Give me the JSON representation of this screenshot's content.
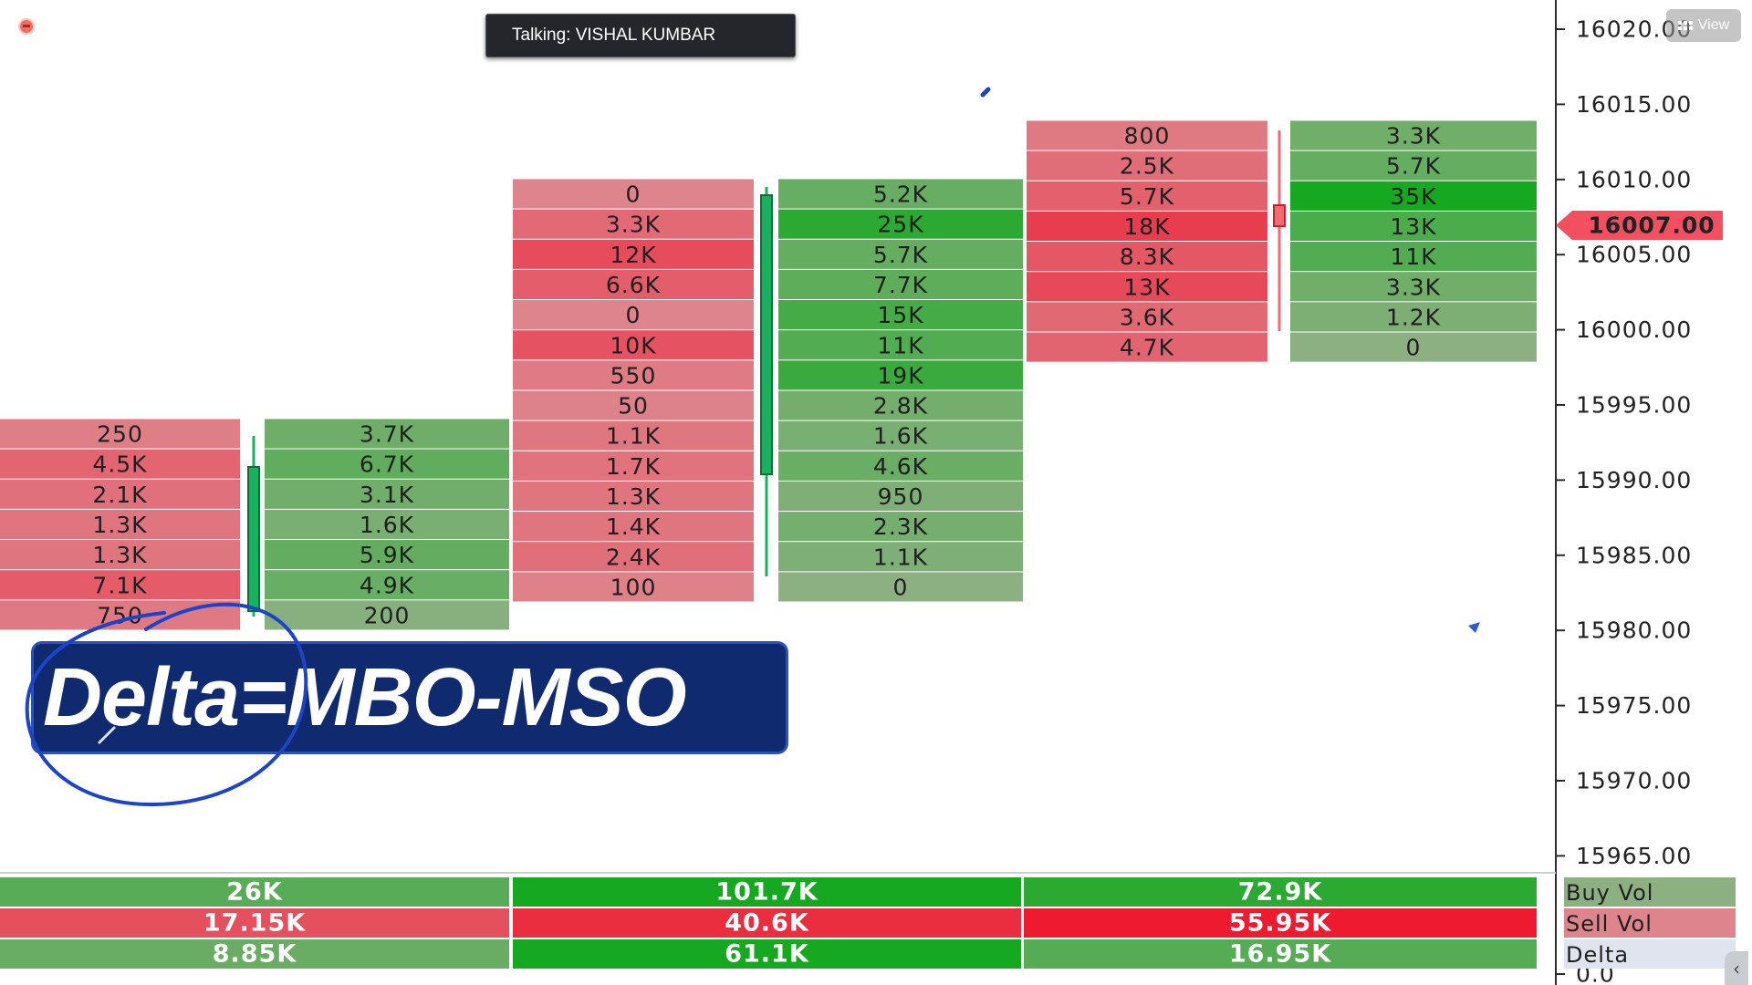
{
  "overlay": {
    "talking_label": "Talking: VISHAL KUMBAR",
    "view_button_label": "View",
    "delta_formula": "Delta=MBO-MSO"
  },
  "chart_data": {
    "type": "table",
    "price_axis": {
      "ticks": [
        "16020.00",
        "16015.00",
        "16010.00",
        "16005.00",
        "16000.00",
        "15995.00",
        "15990.00",
        "15985.00",
        "15980.00",
        "15975.00",
        "15970.00",
        "15965.00",
        "0.0"
      ],
      "current_price": "16007.00",
      "current_price_color": "#f25060"
    },
    "bars": [
      {
        "sell": [
          "250",
          "4.5K",
          "2.1K",
          "1.3K",
          "1.3K",
          "7.1K",
          "750"
        ],
        "buy": [
          "3.7K",
          "6.7K",
          "3.1K",
          "1.6K",
          "5.9K",
          "4.9K",
          "200"
        ]
      },
      {
        "sell": [
          "0",
          "3.3K",
          "12K",
          "6.6K",
          "0",
          "10K",
          "550",
          "50",
          "1.1K",
          "1.7K",
          "1.3K",
          "1.4K",
          "2.4K",
          "100"
        ],
        "buy": [
          "5.2K",
          "25K",
          "5.7K",
          "7.7K",
          "15K",
          "11K",
          "19K",
          "2.8K",
          "1.6K",
          "4.6K",
          "950",
          "2.3K",
          "1.1K",
          "0"
        ]
      },
      {
        "sell": [
          "800",
          "2.5K",
          "5.7K",
          "18K",
          "8.3K",
          "13K",
          "3.6K",
          "4.7K"
        ],
        "buy": [
          "3.3K",
          "5.7K",
          "35K",
          "13K",
          "11K",
          "3.3K",
          "1.2K",
          "0"
        ]
      }
    ],
    "summary": {
      "labels": [
        "Buy Vol",
        "Sell Vol",
        "Delta"
      ],
      "buy_vol": [
        "26K",
        "101.7K",
        "72.9K"
      ],
      "sell_vol": [
        "17.15K",
        "40.6K",
        "55.95K"
      ],
      "delta": [
        "8.85K",
        "61.1K",
        "16.95K"
      ]
    },
    "colors": {
      "buy": "#16a820",
      "sell": "#ee1a30"
    }
  }
}
